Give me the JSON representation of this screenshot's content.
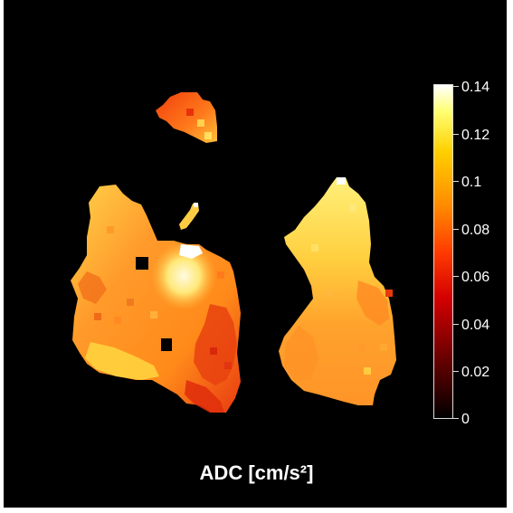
{
  "image": {
    "subject": "ADC parametric map, axial slice, hot colormap",
    "background_color": "#000000"
  },
  "colorbar": {
    "label": "ADC [cm/s²]",
    "colormap": "hot",
    "range": [
      0,
      0.14
    ],
    "colors": [
      "#000000",
      "#8b0000",
      "#ff2200",
      "#ff8800",
      "#ffdd00",
      "#ffffff"
    ],
    "ticks": [
      "0",
      "0.02",
      "0.04",
      "0.06",
      "0.08",
      "0.1",
      "0.12",
      "0.14"
    ]
  }
}
